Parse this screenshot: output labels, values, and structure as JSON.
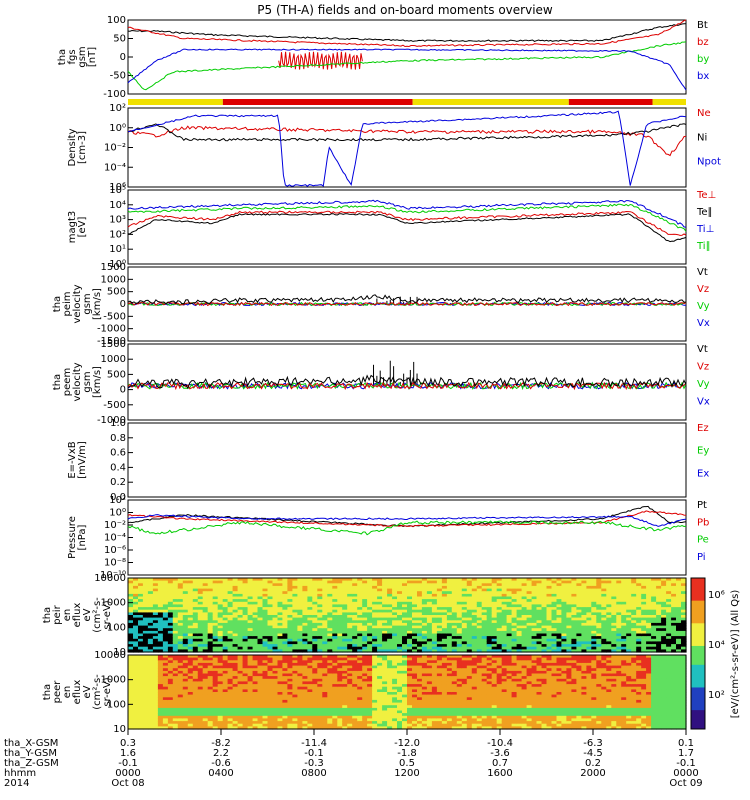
{
  "title": "P5 (TH-A) fields and on-board moments overview",
  "colors": {
    "black": "#000000",
    "red": "#dd0000",
    "green": "#00cc00",
    "blue": "#0000dd",
    "yellow": "#f0e000"
  },
  "chart_data": [
    {
      "type": "line",
      "panel": "fgs",
      "ylabel": [
        "tha",
        "fgs",
        "gsm",
        "[nT]"
      ],
      "yticks": [
        "100",
        "50",
        "0",
        "-50",
        "-100"
      ],
      "series": [
        {
          "name": "Bt",
          "color": "#000000"
        },
        {
          "name": "bz",
          "color": "#dd0000"
        },
        {
          "name": "by",
          "color": "#00cc00"
        },
        {
          "name": "bx",
          "color": "#0000dd"
        }
      ]
    },
    {
      "type": "line",
      "panel": "density",
      "ylabel": [
        "Density",
        "[cm-3]"
      ],
      "yticks": [
        "10²",
        "10⁰",
        "10⁻²",
        "10⁻⁴",
        "10⁶"
      ],
      "log": true,
      "series": [
        {
          "name": "Ne",
          "color": "#dd0000"
        },
        {
          "name": "Ni",
          "color": "#000000"
        },
        {
          "name": "Npot",
          "color": "#0000dd"
        }
      ]
    },
    {
      "type": "line",
      "panel": "temperature",
      "ylabel": [
        "magt3",
        "[eV]"
      ],
      "yticks": [
        "10⁵",
        "10⁴",
        "10³",
        "10²",
        "10¹",
        "10⁰"
      ],
      "log": true,
      "series": [
        {
          "name": "Te⊥",
          "color": "#dd0000"
        },
        {
          "name": "Te∥",
          "color": "#000000"
        },
        {
          "name": "Ti⊥",
          "color": "#0000dd"
        },
        {
          "name": "Ti∥",
          "color": "#00cc00"
        }
      ]
    },
    {
      "type": "line",
      "panel": "peim",
      "ylabel": [
        "tha",
        "peim",
        "velocity",
        "gsm",
        "[km/s]"
      ],
      "yticks": [
        "1500",
        "1000",
        "500",
        "0",
        "-500",
        "-1000",
        "-1500"
      ],
      "series": [
        {
          "name": "Vt",
          "color": "#000000"
        },
        {
          "name": "Vz",
          "color": "#dd0000"
        },
        {
          "name": "Vy",
          "color": "#00cc00"
        },
        {
          "name": "Vx",
          "color": "#0000dd"
        }
      ]
    },
    {
      "type": "line",
      "panel": "peem",
      "ylabel": [
        "tha",
        "peem",
        "velocity",
        "gsm",
        "[km/s]"
      ],
      "yticks": [
        "1500",
        "1000",
        "500",
        "0",
        "-500",
        "-1000"
      ],
      "series": [
        {
          "name": "Vt",
          "color": "#000000"
        },
        {
          "name": "Vz",
          "color": "#dd0000"
        },
        {
          "name": "Vy",
          "color": "#00cc00"
        },
        {
          "name": "Vx",
          "color": "#0000dd"
        }
      ]
    },
    {
      "type": "line",
      "panel": "efield",
      "ylabel": [
        "E=-VxB",
        "[mV/m]"
      ],
      "yticks": [
        "1.0",
        "0.8",
        "0.6",
        "0.4",
        "0.2",
        "0.0"
      ],
      "series": [
        {
          "name": "Ez",
          "color": "#dd0000"
        },
        {
          "name": "Ey",
          "color": "#00cc00"
        },
        {
          "name": "Ex",
          "color": "#0000dd"
        }
      ]
    },
    {
      "type": "line",
      "panel": "pressure",
      "ylabel": [
        "Pressure",
        "[nPa]"
      ],
      "yticks": [
        "10²",
        "10⁰",
        "10⁻²",
        "10⁻⁴",
        "10⁻⁶",
        "10⁻⁸",
        "10⁻¹⁰"
      ],
      "log": true,
      "series": [
        {
          "name": "Pt",
          "color": "#000000"
        },
        {
          "name": "Pb",
          "color": "#dd0000"
        },
        {
          "name": "Pe",
          "color": "#00cc00"
        },
        {
          "name": "Pi",
          "color": "#0000dd"
        }
      ]
    },
    {
      "type": "heatmap",
      "panel": "peir",
      "ylabel": [
        "tha",
        "peir",
        "en",
        "eflux",
        "eV",
        "(cm²-s-",
        "sr-eV)"
      ],
      "yticks": [
        "10000",
        "1000",
        "100",
        "10"
      ],
      "log": true
    },
    {
      "type": "heatmap",
      "panel": "peer",
      "ylabel": [
        "tha",
        "peer",
        "en",
        "eflux",
        "eV",
        "(cm²-s-",
        "sr-eV)"
      ],
      "yticks": [
        "10000",
        "1000",
        "100",
        "10"
      ],
      "log": true
    }
  ],
  "colorbar": {
    "label": "[eV/(cm²-s-sr-eV)] (All Qs)",
    "ticks": [
      "10⁶",
      "10⁴",
      "10²"
    ]
  },
  "xaxis": {
    "rows": [
      {
        "label": "tha_X-GSM",
        "values": [
          "0.3",
          "-8.2",
          "-11.4",
          "-12.0",
          "-10.4",
          "-6.3",
          "0.1"
        ]
      },
      {
        "label": "tha_Y-GSM",
        "values": [
          "1.6",
          "2.2",
          "-0.1",
          "-1.8",
          "-3.6",
          "-4.5",
          "1.7"
        ]
      },
      {
        "label": "tha_Z-GSM",
        "values": [
          "-0.1",
          "-0.6",
          "-0.3",
          "0.5",
          "0.7",
          "0.2",
          "-0.1"
        ]
      },
      {
        "label": "hhmm",
        "values": [
          "0000",
          "0400",
          "0800",
          "1200",
          "1600",
          "2000",
          "0000"
        ]
      }
    ],
    "year": "2014",
    "date_start": "Oct 08",
    "date_end": "Oct 09"
  }
}
